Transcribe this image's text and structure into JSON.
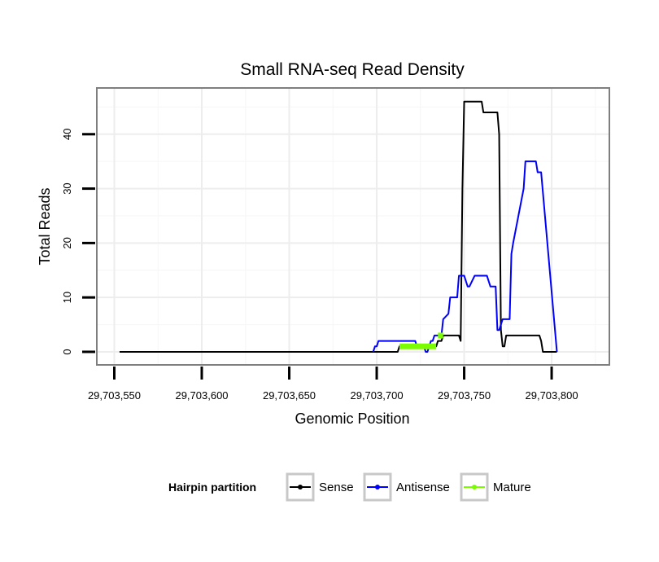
{
  "chart_data": {
    "type": "line",
    "title": "Small RNA-seq Read Density",
    "xlabel": "Genomic Position",
    "ylabel": "Total Reads",
    "xlim": [
      29703540,
      29703833
    ],
    "ylim": [
      -2.4,
      48.5
    ],
    "x_ticks": [
      29703550,
      29703600,
      29703650,
      29703700,
      29703750,
      29703800
    ],
    "x_tick_labels": [
      "29,703,550",
      "29,703,600",
      "29,703,650",
      "29,703,700",
      "29,703,750",
      "29,703,800"
    ],
    "y_ticks": [
      0,
      10,
      20,
      30,
      40
    ],
    "y_tick_labels": [
      "0",
      "10",
      "20",
      "30",
      "40"
    ],
    "grid": true,
    "legend": {
      "title": "Hairpin partition",
      "position": "bottom",
      "entries": [
        "Sense",
        "Antisense",
        "Mature"
      ]
    },
    "series": [
      {
        "name": "Sense",
        "color": "#000000",
        "x": [
          29703553,
          29703712,
          29703713,
          29703734,
          29703735,
          29703737,
          29703738,
          29703747,
          29703748,
          29703749,
          29703750,
          29703760,
          29703761,
          29703769,
          29703770,
          29703771,
          29703772,
          29703773,
          29703774,
          29703793,
          29703794,
          29703795,
          29703803
        ],
        "y": [
          0,
          0,
          1,
          1,
          2,
          2,
          3,
          3,
          2,
          30,
          46,
          46,
          44,
          44,
          40,
          4,
          1,
          1,
          3,
          3,
          2,
          0,
          0
        ]
      },
      {
        "name": "Antisense",
        "color": "#0000ff",
        "x": [
          29703698,
          29703699,
          29703700,
          29703701,
          29703722,
          29703723,
          29703727,
          29703728,
          29703729,
          29703730,
          29703731,
          29703732,
          29703733,
          29703737,
          29703738,
          29703741,
          29703742,
          29703746,
          29703747,
          29703749,
          29703750,
          29703751,
          29703752,
          29703753,
          29703756,
          29703763,
          29703764,
          29703765,
          29703768,
          29703769,
          29703770,
          29703771,
          29703772,
          29703776,
          29703777,
          29703778,
          29703784,
          29703785,
          29703791,
          29703792,
          29703794,
          29703803
        ],
        "y": [
          0,
          1,
          1,
          2,
          2,
          1,
          1,
          0,
          0,
          1,
          2,
          2,
          3,
          3,
          6,
          7,
          10,
          10,
          14,
          14,
          14,
          13,
          12,
          12,
          14,
          14,
          13,
          12,
          12,
          4,
          4,
          5,
          6,
          6,
          18,
          20,
          30,
          35,
          35,
          33,
          33,
          0
        ]
      },
      {
        "name": "Mature",
        "color": "#7cfc00",
        "segments": [
          {
            "x": [
              29703713,
              29703734
            ],
            "y": [
              1,
              1
            ]
          },
          {
            "x": [
              29703735,
              29703738
            ],
            "y": [
              3,
              3
            ]
          }
        ]
      }
    ]
  }
}
